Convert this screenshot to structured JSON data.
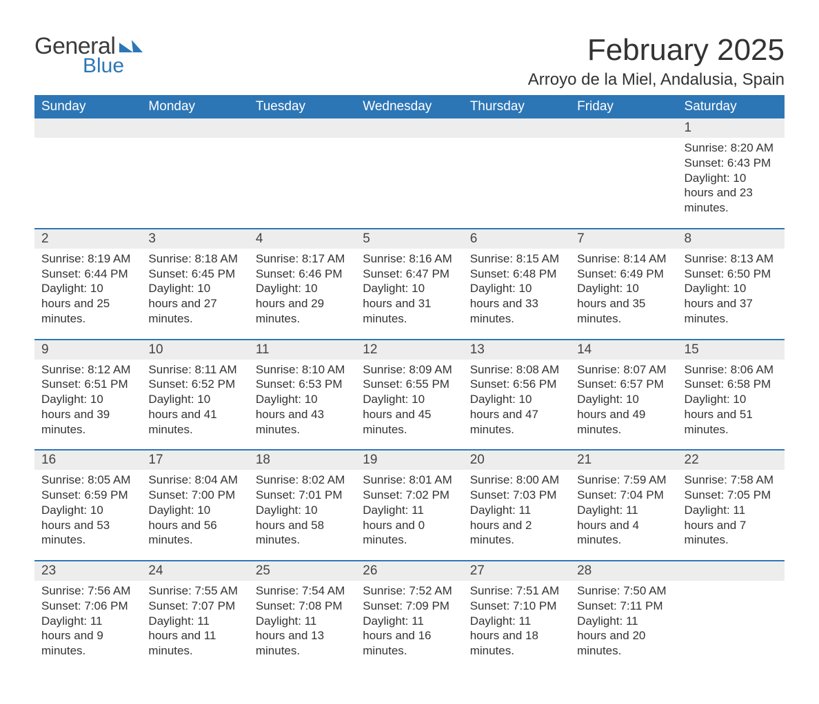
{
  "brand": {
    "part1": "General",
    "part2": "Blue",
    "color1": "#3b3b3b",
    "color2": "#2d76b6"
  },
  "title": "February 2025",
  "location": "Arroyo de la Miel, Andalusia, Spain",
  "header_bg": "#2d76b6",
  "header_fg": "#ffffff",
  "daynum_bg": "#ededed",
  "rule_color": "#2d76b6",
  "weekdays": [
    "Sunday",
    "Monday",
    "Tuesday",
    "Wednesday",
    "Thursday",
    "Friday",
    "Saturday"
  ],
  "weeks": [
    [
      null,
      null,
      null,
      null,
      null,
      null,
      {
        "n": "1",
        "sunrise": "Sunrise: 8:20 AM",
        "sunset": "Sunset: 6:43 PM",
        "daylight": "Daylight: 10 hours and 23 minutes."
      }
    ],
    [
      {
        "n": "2",
        "sunrise": "Sunrise: 8:19 AM",
        "sunset": "Sunset: 6:44 PM",
        "daylight": "Daylight: 10 hours and 25 minutes."
      },
      {
        "n": "3",
        "sunrise": "Sunrise: 8:18 AM",
        "sunset": "Sunset: 6:45 PM",
        "daylight": "Daylight: 10 hours and 27 minutes."
      },
      {
        "n": "4",
        "sunrise": "Sunrise: 8:17 AM",
        "sunset": "Sunset: 6:46 PM",
        "daylight": "Daylight: 10 hours and 29 minutes."
      },
      {
        "n": "5",
        "sunrise": "Sunrise: 8:16 AM",
        "sunset": "Sunset: 6:47 PM",
        "daylight": "Daylight: 10 hours and 31 minutes."
      },
      {
        "n": "6",
        "sunrise": "Sunrise: 8:15 AM",
        "sunset": "Sunset: 6:48 PM",
        "daylight": "Daylight: 10 hours and 33 minutes."
      },
      {
        "n": "7",
        "sunrise": "Sunrise: 8:14 AM",
        "sunset": "Sunset: 6:49 PM",
        "daylight": "Daylight: 10 hours and 35 minutes."
      },
      {
        "n": "8",
        "sunrise": "Sunrise: 8:13 AM",
        "sunset": "Sunset: 6:50 PM",
        "daylight": "Daylight: 10 hours and 37 minutes."
      }
    ],
    [
      {
        "n": "9",
        "sunrise": "Sunrise: 8:12 AM",
        "sunset": "Sunset: 6:51 PM",
        "daylight": "Daylight: 10 hours and 39 minutes."
      },
      {
        "n": "10",
        "sunrise": "Sunrise: 8:11 AM",
        "sunset": "Sunset: 6:52 PM",
        "daylight": "Daylight: 10 hours and 41 minutes."
      },
      {
        "n": "11",
        "sunrise": "Sunrise: 8:10 AM",
        "sunset": "Sunset: 6:53 PM",
        "daylight": "Daylight: 10 hours and 43 minutes."
      },
      {
        "n": "12",
        "sunrise": "Sunrise: 8:09 AM",
        "sunset": "Sunset: 6:55 PM",
        "daylight": "Daylight: 10 hours and 45 minutes."
      },
      {
        "n": "13",
        "sunrise": "Sunrise: 8:08 AM",
        "sunset": "Sunset: 6:56 PM",
        "daylight": "Daylight: 10 hours and 47 minutes."
      },
      {
        "n": "14",
        "sunrise": "Sunrise: 8:07 AM",
        "sunset": "Sunset: 6:57 PM",
        "daylight": "Daylight: 10 hours and 49 minutes."
      },
      {
        "n": "15",
        "sunrise": "Sunrise: 8:06 AM",
        "sunset": "Sunset: 6:58 PM",
        "daylight": "Daylight: 10 hours and 51 minutes."
      }
    ],
    [
      {
        "n": "16",
        "sunrise": "Sunrise: 8:05 AM",
        "sunset": "Sunset: 6:59 PM",
        "daylight": "Daylight: 10 hours and 53 minutes."
      },
      {
        "n": "17",
        "sunrise": "Sunrise: 8:04 AM",
        "sunset": "Sunset: 7:00 PM",
        "daylight": "Daylight: 10 hours and 56 minutes."
      },
      {
        "n": "18",
        "sunrise": "Sunrise: 8:02 AM",
        "sunset": "Sunset: 7:01 PM",
        "daylight": "Daylight: 10 hours and 58 minutes."
      },
      {
        "n": "19",
        "sunrise": "Sunrise: 8:01 AM",
        "sunset": "Sunset: 7:02 PM",
        "daylight": "Daylight: 11 hours and 0 minutes."
      },
      {
        "n": "20",
        "sunrise": "Sunrise: 8:00 AM",
        "sunset": "Sunset: 7:03 PM",
        "daylight": "Daylight: 11 hours and 2 minutes."
      },
      {
        "n": "21",
        "sunrise": "Sunrise: 7:59 AM",
        "sunset": "Sunset: 7:04 PM",
        "daylight": "Daylight: 11 hours and 4 minutes."
      },
      {
        "n": "22",
        "sunrise": "Sunrise: 7:58 AM",
        "sunset": "Sunset: 7:05 PM",
        "daylight": "Daylight: 11 hours and 7 minutes."
      }
    ],
    [
      {
        "n": "23",
        "sunrise": "Sunrise: 7:56 AM",
        "sunset": "Sunset: 7:06 PM",
        "daylight": "Daylight: 11 hours and 9 minutes."
      },
      {
        "n": "24",
        "sunrise": "Sunrise: 7:55 AM",
        "sunset": "Sunset: 7:07 PM",
        "daylight": "Daylight: 11 hours and 11 minutes."
      },
      {
        "n": "25",
        "sunrise": "Sunrise: 7:54 AM",
        "sunset": "Sunset: 7:08 PM",
        "daylight": "Daylight: 11 hours and 13 minutes."
      },
      {
        "n": "26",
        "sunrise": "Sunrise: 7:52 AM",
        "sunset": "Sunset: 7:09 PM",
        "daylight": "Daylight: 11 hours and 16 minutes."
      },
      {
        "n": "27",
        "sunrise": "Sunrise: 7:51 AM",
        "sunset": "Sunset: 7:10 PM",
        "daylight": "Daylight: 11 hours and 18 minutes."
      },
      {
        "n": "28",
        "sunrise": "Sunrise: 7:50 AM",
        "sunset": "Sunset: 7:11 PM",
        "daylight": "Daylight: 11 hours and 20 minutes."
      },
      null
    ]
  ]
}
